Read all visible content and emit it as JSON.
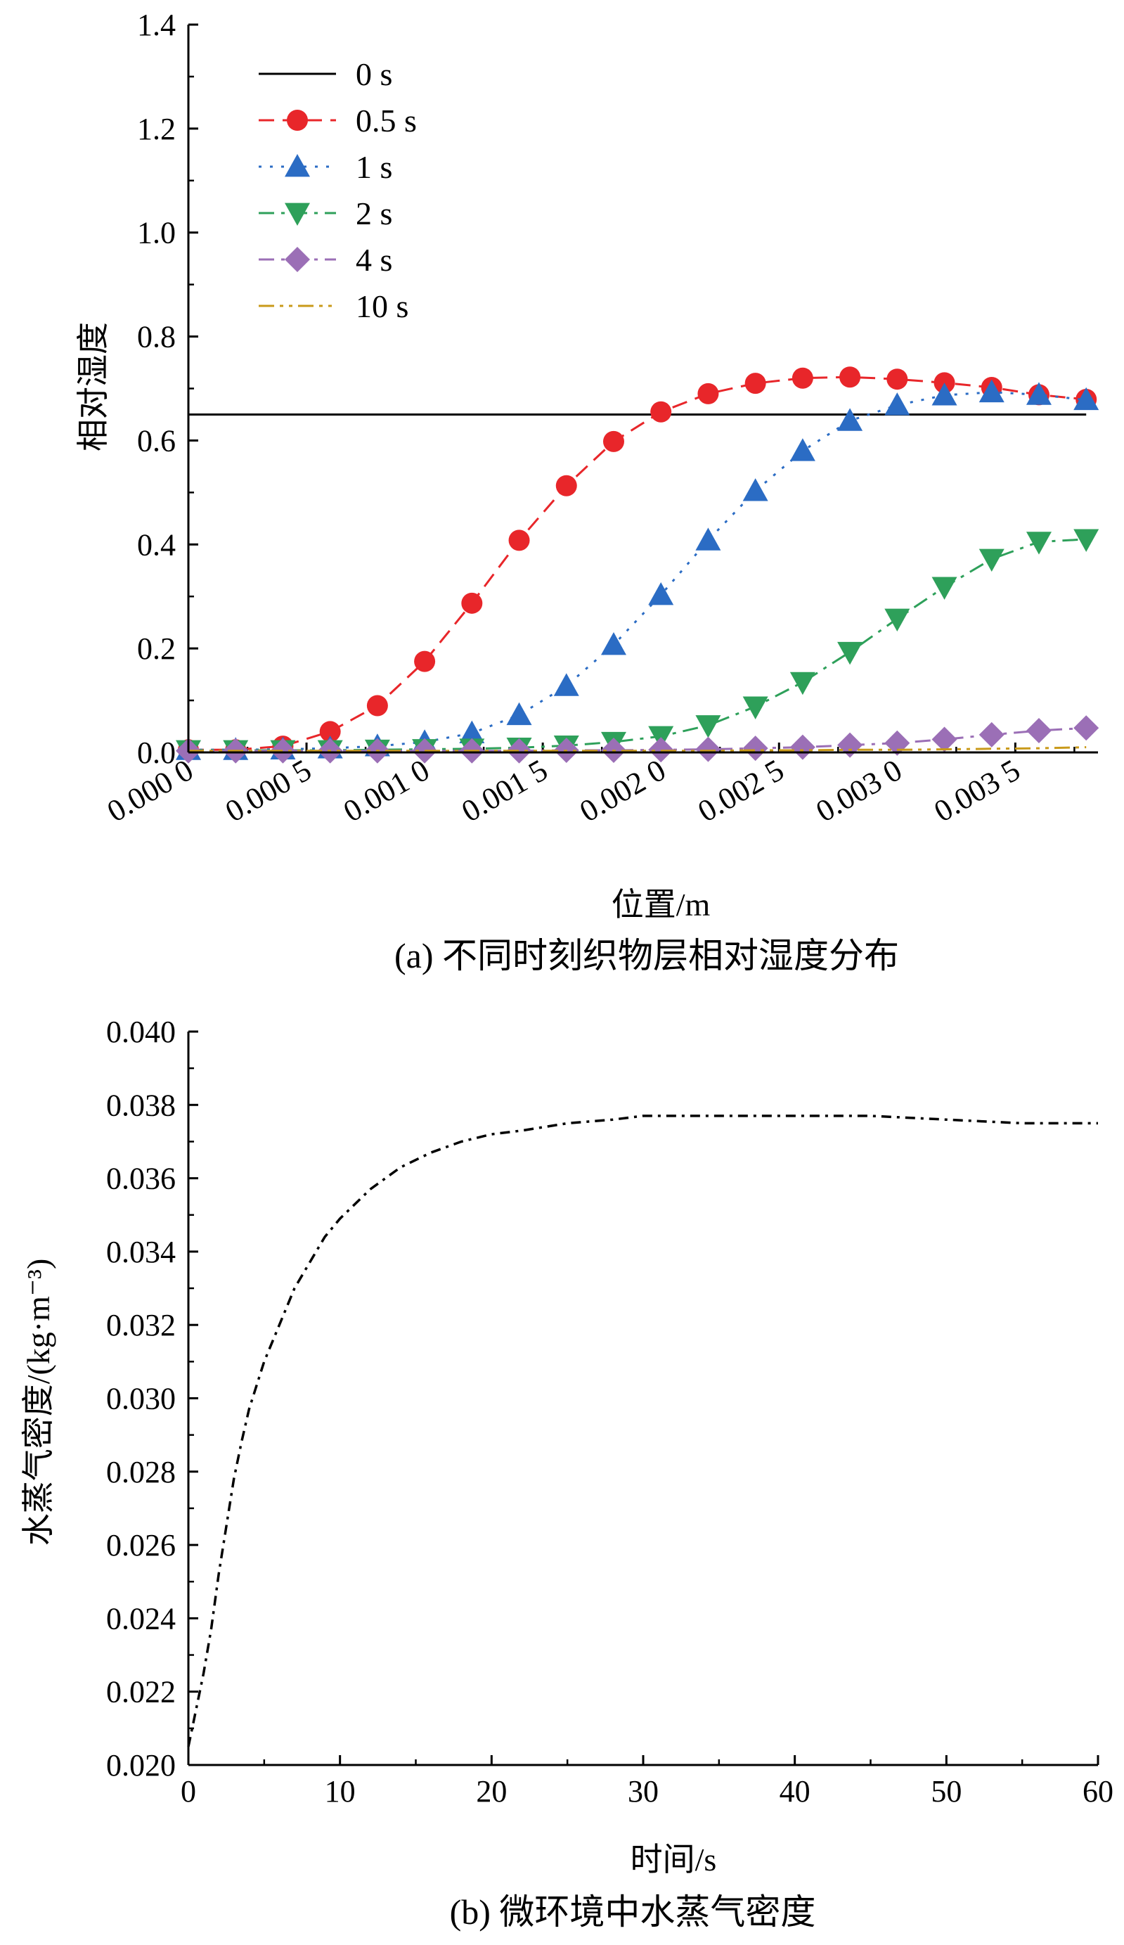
{
  "chart_data": [
    {
      "type": "line",
      "caption": "(a) 不同时刻织物层相对湿度分布",
      "xlabel": "位置/m",
      "ylabel": "相对湿度",
      "xlim": [
        0,
        0.00385
      ],
      "ylim": [
        0,
        1.4
      ],
      "xticks": [
        0.0,
        0.0005,
        0.001,
        0.0015,
        0.002,
        0.0025,
        0.003,
        0.0035
      ],
      "xtick_labels": [
        "0.000 0",
        "0.000 5",
        "0.001 0",
        "0.001 5",
        "0.002 0",
        "0.002 5",
        "0.003 0",
        "0.003 5"
      ],
      "yticks": [
        0.0,
        0.2,
        0.4,
        0.6,
        0.8,
        1.0,
        1.2,
        1.4
      ],
      "ytick_labels": [
        "0.0",
        "0.2",
        "0.4",
        "0.6",
        "0.8",
        "1.0",
        "1.2",
        "1.4"
      ],
      "grid": false,
      "legend_position": "top-left",
      "x": [
        0.0,
        0.0002,
        0.0004,
        0.0006,
        0.0008,
        0.001,
        0.0012,
        0.0014,
        0.0016,
        0.0018,
        0.002,
        0.0022,
        0.0024,
        0.0026,
        0.0028,
        0.003,
        0.0032,
        0.0034,
        0.0036,
        0.0038
      ],
      "series": [
        {
          "name": "0 s",
          "color": "#000000",
          "dash": "",
          "marker": "none",
          "values": [
            0.65,
            0.65,
            0.65,
            0.65,
            0.65,
            0.65,
            0.65,
            0.65,
            0.65,
            0.65,
            0.65,
            0.65,
            0.65,
            0.65,
            0.65,
            0.65,
            0.65,
            0.65,
            0.65,
            0.65
          ]
        },
        {
          "name": "0.5 s",
          "color": "#e8262a",
          "dash": "22,12",
          "marker": "circle",
          "values": [
            0.005,
            0.005,
            0.012,
            0.04,
            0.09,
            0.175,
            0.287,
            0.408,
            0.513,
            0.598,
            0.655,
            0.69,
            0.71,
            0.72,
            0.722,
            0.718,
            0.711,
            0.702,
            0.688,
            0.679
          ]
        },
        {
          "name": "1 s",
          "color": "#2b6cc4",
          "dash": "4,12",
          "marker": "triangle-up",
          "values": [
            0.005,
            0.005,
            0.006,
            0.008,
            0.012,
            0.02,
            0.037,
            0.072,
            0.128,
            0.207,
            0.303,
            0.408,
            0.503,
            0.58,
            0.638,
            0.668,
            0.687,
            0.693,
            0.688,
            0.678
          ]
        },
        {
          "name": "2 s",
          "color": "#2ea05a",
          "dash": "22,10,5,10",
          "marker": "triangle-down",
          "values": [
            0.004,
            0.004,
            0.004,
            0.004,
            0.005,
            0.006,
            0.007,
            0.009,
            0.013,
            0.02,
            0.031,
            0.052,
            0.088,
            0.135,
            0.193,
            0.257,
            0.318,
            0.372,
            0.405,
            0.41
          ]
        },
        {
          "name": "4 s",
          "color": "#9b6fb6",
          "dash": "22,10,5,10",
          "marker": "diamond",
          "values": [
            0.003,
            0.003,
            0.003,
            0.003,
            0.003,
            0.003,
            0.003,
            0.003,
            0.004,
            0.004,
            0.005,
            0.006,
            0.008,
            0.01,
            0.014,
            0.018,
            0.025,
            0.034,
            0.042,
            0.047
          ]
        },
        {
          "name": "10 s",
          "color": "#c99a1a",
          "dash": "22,8,5,8,5,8",
          "marker": "none",
          "values": [
            0.003,
            0.003,
            0.003,
            0.003,
            0.003,
            0.003,
            0.003,
            0.003,
            0.003,
            0.003,
            0.003,
            0.003,
            0.004,
            0.004,
            0.005,
            0.005,
            0.006,
            0.007,
            0.008,
            0.01
          ]
        }
      ]
    },
    {
      "type": "line",
      "caption": "(b)  微环境中水蒸气密度",
      "xlabel": "时间/s",
      "ylabel": "水蒸气密度/(kg·m⁻³)",
      "xlim": [
        0,
        60
      ],
      "ylim": [
        0.02,
        0.04
      ],
      "xticks": [
        0,
        10,
        20,
        30,
        40,
        50,
        60
      ],
      "xtick_labels": [
        "0",
        "10",
        "20",
        "30",
        "40",
        "50",
        "60"
      ],
      "yticks": [
        0.02,
        0.022,
        0.024,
        0.026,
        0.028,
        0.03,
        0.032,
        0.034,
        0.036,
        0.038,
        0.04
      ],
      "ytick_labels": [
        "0.020",
        "0.022",
        "0.024",
        "0.026",
        "0.028",
        "0.030",
        "0.032",
        "0.034",
        "0.036",
        "0.038",
        "0.040"
      ],
      "grid": false,
      "x": [
        0,
        0.5,
        1,
        1.5,
        2,
        2.5,
        3,
        3.5,
        4,
        5,
        6,
        7,
        8,
        9,
        10,
        12,
        14,
        16,
        18,
        20,
        22,
        25,
        28,
        30,
        35,
        40,
        45,
        50,
        55,
        58,
        60
      ],
      "series": [
        {
          "name": "",
          "color": "#000000",
          "dash": "14,8,4,8",
          "values": [
            0.0205,
            0.0215,
            0.0225,
            0.0237,
            0.0252,
            0.0265,
            0.0278,
            0.0288,
            0.0297,
            0.031,
            0.032,
            0.033,
            0.0337,
            0.0344,
            0.0349,
            0.0357,
            0.0363,
            0.0367,
            0.037,
            0.0372,
            0.0373,
            0.0375,
            0.0376,
            0.0377,
            0.0377,
            0.0377,
            0.0377,
            0.0376,
            0.0375,
            0.0375,
            0.0375
          ]
        }
      ]
    }
  ]
}
